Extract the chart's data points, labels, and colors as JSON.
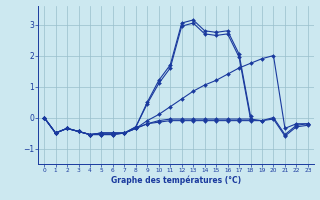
{
  "x": [
    0,
    1,
    2,
    3,
    4,
    5,
    6,
    7,
    8,
    9,
    10,
    11,
    12,
    13,
    14,
    15,
    16,
    17,
    18,
    19,
    20,
    21,
    22,
    23
  ],
  "line_peak": [
    0,
    -0.5,
    -0.35,
    -0.45,
    -0.55,
    -0.55,
    -0.55,
    -0.5,
    -0.3,
    0.5,
    1.2,
    1.7,
    3.05,
    3.15,
    2.8,
    2.75,
    2.8,
    2.05,
    0.05,
    null,
    null,
    null,
    null,
    null
  ],
  "line_peak2": [
    0,
    -0.5,
    -0.35,
    -0.45,
    -0.55,
    -0.55,
    -0.55,
    -0.5,
    -0.3,
    0.45,
    1.1,
    1.6,
    2.95,
    3.05,
    2.7,
    2.65,
    2.7,
    1.95,
    -0.05,
    null,
    null,
    null,
    null,
    null
  ],
  "line_diag": [
    0,
    -0.5,
    -0.35,
    -0.45,
    -0.55,
    -0.5,
    -0.5,
    -0.5,
    -0.35,
    -0.1,
    0.1,
    0.35,
    0.6,
    0.85,
    1.05,
    1.2,
    1.4,
    1.6,
    1.75,
    1.9,
    2.0,
    -0.35,
    -0.2,
    -0.2
  ],
  "line_flat1": [
    0,
    -0.5,
    -0.35,
    -0.45,
    -0.55,
    -0.5,
    -0.5,
    -0.5,
    -0.35,
    -0.2,
    -0.15,
    -0.1,
    -0.1,
    -0.1,
    -0.1,
    -0.1,
    -0.1,
    -0.1,
    -0.1,
    -0.1,
    -0.05,
    -0.6,
    -0.3,
    -0.25
  ],
  "line_flat2": [
    0,
    -0.5,
    -0.35,
    -0.45,
    -0.55,
    -0.5,
    -0.5,
    -0.5,
    -0.35,
    -0.2,
    -0.1,
    -0.05,
    -0.05,
    -0.05,
    -0.05,
    -0.05,
    -0.05,
    -0.05,
    -0.05,
    -0.1,
    0.0,
    -0.55,
    -0.25,
    -0.2
  ],
  "bg_color": "#cce8f0",
  "line_color": "#1a3a9e",
  "grid_color": "#99bfcc",
  "xlabel": "Graphe des températures (°C)",
  "ylim": [
    -1.5,
    3.6
  ],
  "xlim": [
    -0.5,
    23.5
  ],
  "yticks": [
    -1,
    0,
    1,
    2,
    3
  ],
  "xticks": [
    0,
    1,
    2,
    3,
    4,
    5,
    6,
    7,
    8,
    9,
    10,
    11,
    12,
    13,
    14,
    15,
    16,
    17,
    18,
    19,
    20,
    21,
    22,
    23
  ],
  "markersize": 2.0,
  "linewidth": 0.8
}
